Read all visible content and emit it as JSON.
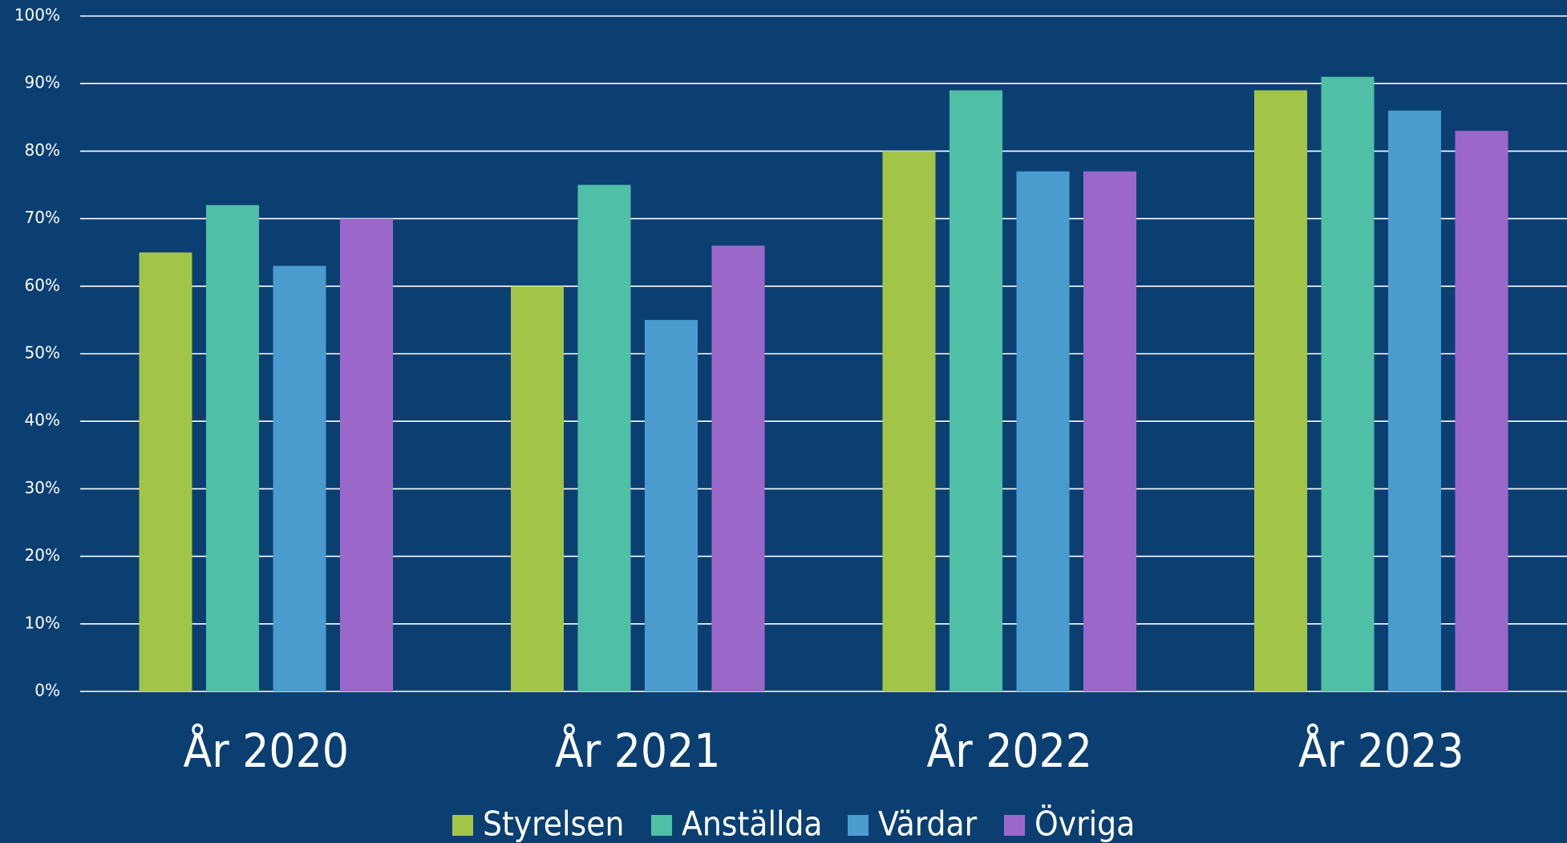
{
  "chart_data": {
    "type": "bar",
    "categories": [
      "År 2020",
      "År 2021",
      "År 2022",
      "År 2023"
    ],
    "series": [
      {
        "name": "Styrelsen",
        "color": "#a2c548",
        "values": [
          65,
          60,
          80,
          89
        ]
      },
      {
        "name": "Anställda",
        "color": "#4fbfa5",
        "values": [
          72,
          75,
          89,
          91
        ]
      },
      {
        "name": "Värdar",
        "color": "#4a9ccf",
        "values": [
          63,
          55,
          77,
          86
        ]
      },
      {
        "name": "Övriga",
        "color": "#9b68c9",
        "values": [
          70,
          66,
          77,
          83
        ]
      }
    ],
    "ylim": [
      0,
      100
    ],
    "yticks": [
      {
        "value": 0,
        "label": "0%"
      },
      {
        "value": 10,
        "label": "10%"
      },
      {
        "value": 20,
        "label": "20%"
      },
      {
        "value": 30,
        "label": "30%"
      },
      {
        "value": 40,
        "label": "40%"
      },
      {
        "value": 50,
        "label": "50%"
      },
      {
        "value": 60,
        "label": "60%"
      },
      {
        "value": 70,
        "label": "70%"
      },
      {
        "value": 80,
        "label": "80%"
      },
      {
        "value": 90,
        "label": "90%"
      },
      {
        "value": 100,
        "label": "100%"
      }
    ],
    "grid": true,
    "legend": "bottom"
  }
}
